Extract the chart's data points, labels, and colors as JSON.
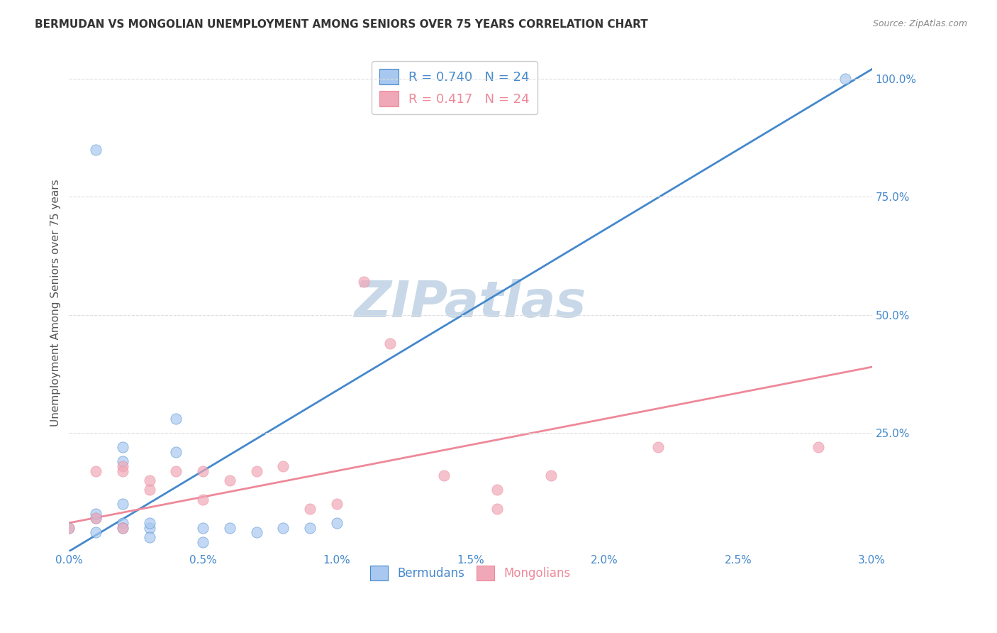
{
  "title": "BERMUDAN VS MONGOLIAN UNEMPLOYMENT AMONG SENIORS OVER 75 YEARS CORRELATION CHART",
  "source": "Source: ZipAtlas.com",
  "xlabel": "",
  "ylabel": "Unemployment Among Seniors over 75 years",
  "right_ytick_labels": [
    "100.0%",
    "75.0%",
    "50.0%",
    "25.0%"
  ],
  "right_ytick_values": [
    1.0,
    0.75,
    0.5,
    0.25
  ],
  "xlim": [
    0.0,
    0.03
  ],
  "ylim": [
    0.0,
    1.05
  ],
  "xtick_labels": [
    "0.0%",
    "0.5%",
    "1.0%",
    "1.5%",
    "2.0%",
    "2.5%",
    "3.0%"
  ],
  "xtick_values": [
    0.0,
    0.005,
    0.01,
    0.015,
    0.02,
    0.025,
    0.03
  ],
  "bermudans_color": "#a8c8f0",
  "mongolians_color": "#f0a8b8",
  "blue_line_color": "#4488cc",
  "pink_line_color": "#ee8899",
  "legend_R_blue": "R = 0.740",
  "legend_N_blue": "N = 24",
  "legend_R_pink": "R = 0.417",
  "legend_N_pink": "N = 24",
  "watermark": "ZIPatlas",
  "watermark_color": "#c8d8e8",
  "title_color": "#333333",
  "axis_label_color": "#555555",
  "right_axis_color": "#4488cc",
  "grid_color": "#dddddd",
  "bermudans_x": [
    0.0,
    0.001,
    0.001,
    0.001,
    0.002,
    0.002,
    0.002,
    0.002,
    0.003,
    0.003,
    0.003,
    0.004,
    0.004,
    0.005,
    0.005,
    0.006,
    0.007,
    0.008,
    0.009,
    0.01,
    0.016,
    0.002,
    0.001,
    0.029
  ],
  "bermudans_y": [
    0.05,
    0.07,
    0.04,
    0.08,
    0.06,
    0.22,
    0.19,
    0.1,
    0.05,
    0.03,
    0.06,
    0.28,
    0.21,
    0.05,
    0.02,
    0.05,
    0.04,
    0.05,
    0.05,
    0.06,
    0.95,
    0.05,
    0.85,
    1.0
  ],
  "mongolians_x": [
    0.0,
    0.001,
    0.001,
    0.002,
    0.002,
    0.003,
    0.003,
    0.004,
    0.005,
    0.005,
    0.006,
    0.007,
    0.008,
    0.009,
    0.01,
    0.011,
    0.012,
    0.014,
    0.016,
    0.016,
    0.018,
    0.022,
    0.028,
    0.002
  ],
  "mongolians_y": [
    0.05,
    0.07,
    0.17,
    0.18,
    0.17,
    0.13,
    0.15,
    0.17,
    0.11,
    0.17,
    0.15,
    0.17,
    0.18,
    0.09,
    0.1,
    0.57,
    0.44,
    0.16,
    0.09,
    0.13,
    0.16,
    0.22,
    0.22,
    0.05
  ],
  "blue_line_x": [
    0.0,
    0.03
  ],
  "blue_line_y": [
    0.0,
    1.02
  ],
  "pink_line_x": [
    0.0,
    0.03
  ],
  "pink_line_y": [
    0.06,
    0.39
  ],
  "marker_size": 120,
  "legend_fontsize": 13,
  "title_fontsize": 11,
  "axis_label_fontsize": 11
}
